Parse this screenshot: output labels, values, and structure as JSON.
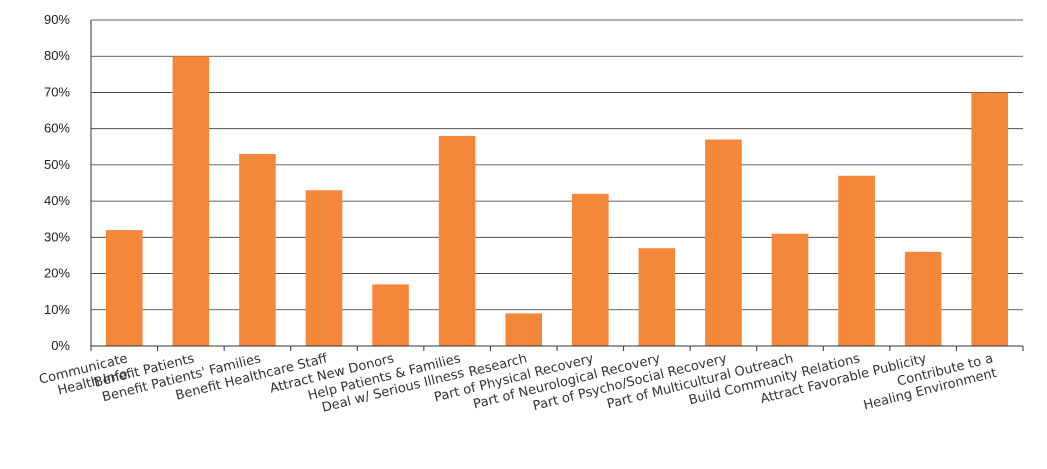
{
  "chart_data": {
    "type": "bar",
    "title": "",
    "xlabel": "",
    "ylabel": "",
    "ylim": [
      0,
      90
    ],
    "y_ticks": [
      "0%",
      "10%",
      "20%",
      "30%",
      "40%",
      "50%",
      "60%",
      "70%",
      "80%",
      "90%"
    ],
    "grid": true,
    "bar_color": "#F5873B",
    "categories": [
      [
        "Communicate",
        "Health Info."
      ],
      [
        "Benefit Patients"
      ],
      [
        "Benefit Patients' Families"
      ],
      [
        "Benefit Healthcare Staff"
      ],
      [
        "Attract New Donors"
      ],
      [
        "Help Patients & Families",
        "Deal w/ Serious Illness"
      ],
      [
        "Research"
      ],
      [
        "Part of Physical Recovery"
      ],
      [
        "Part of Neurological Recovery"
      ],
      [
        "Part of Psycho/Social Recovery"
      ],
      [
        "Part of Multicultural Outreach"
      ],
      [
        "Build Community Relations"
      ],
      [
        "Attract Favorable Publicity"
      ],
      [
        "Contribute to a",
        "Healing Environment"
      ]
    ],
    "values": [
      32,
      80,
      53,
      43,
      17,
      58,
      9,
      42,
      27,
      57,
      31,
      47,
      26,
      70
    ]
  }
}
